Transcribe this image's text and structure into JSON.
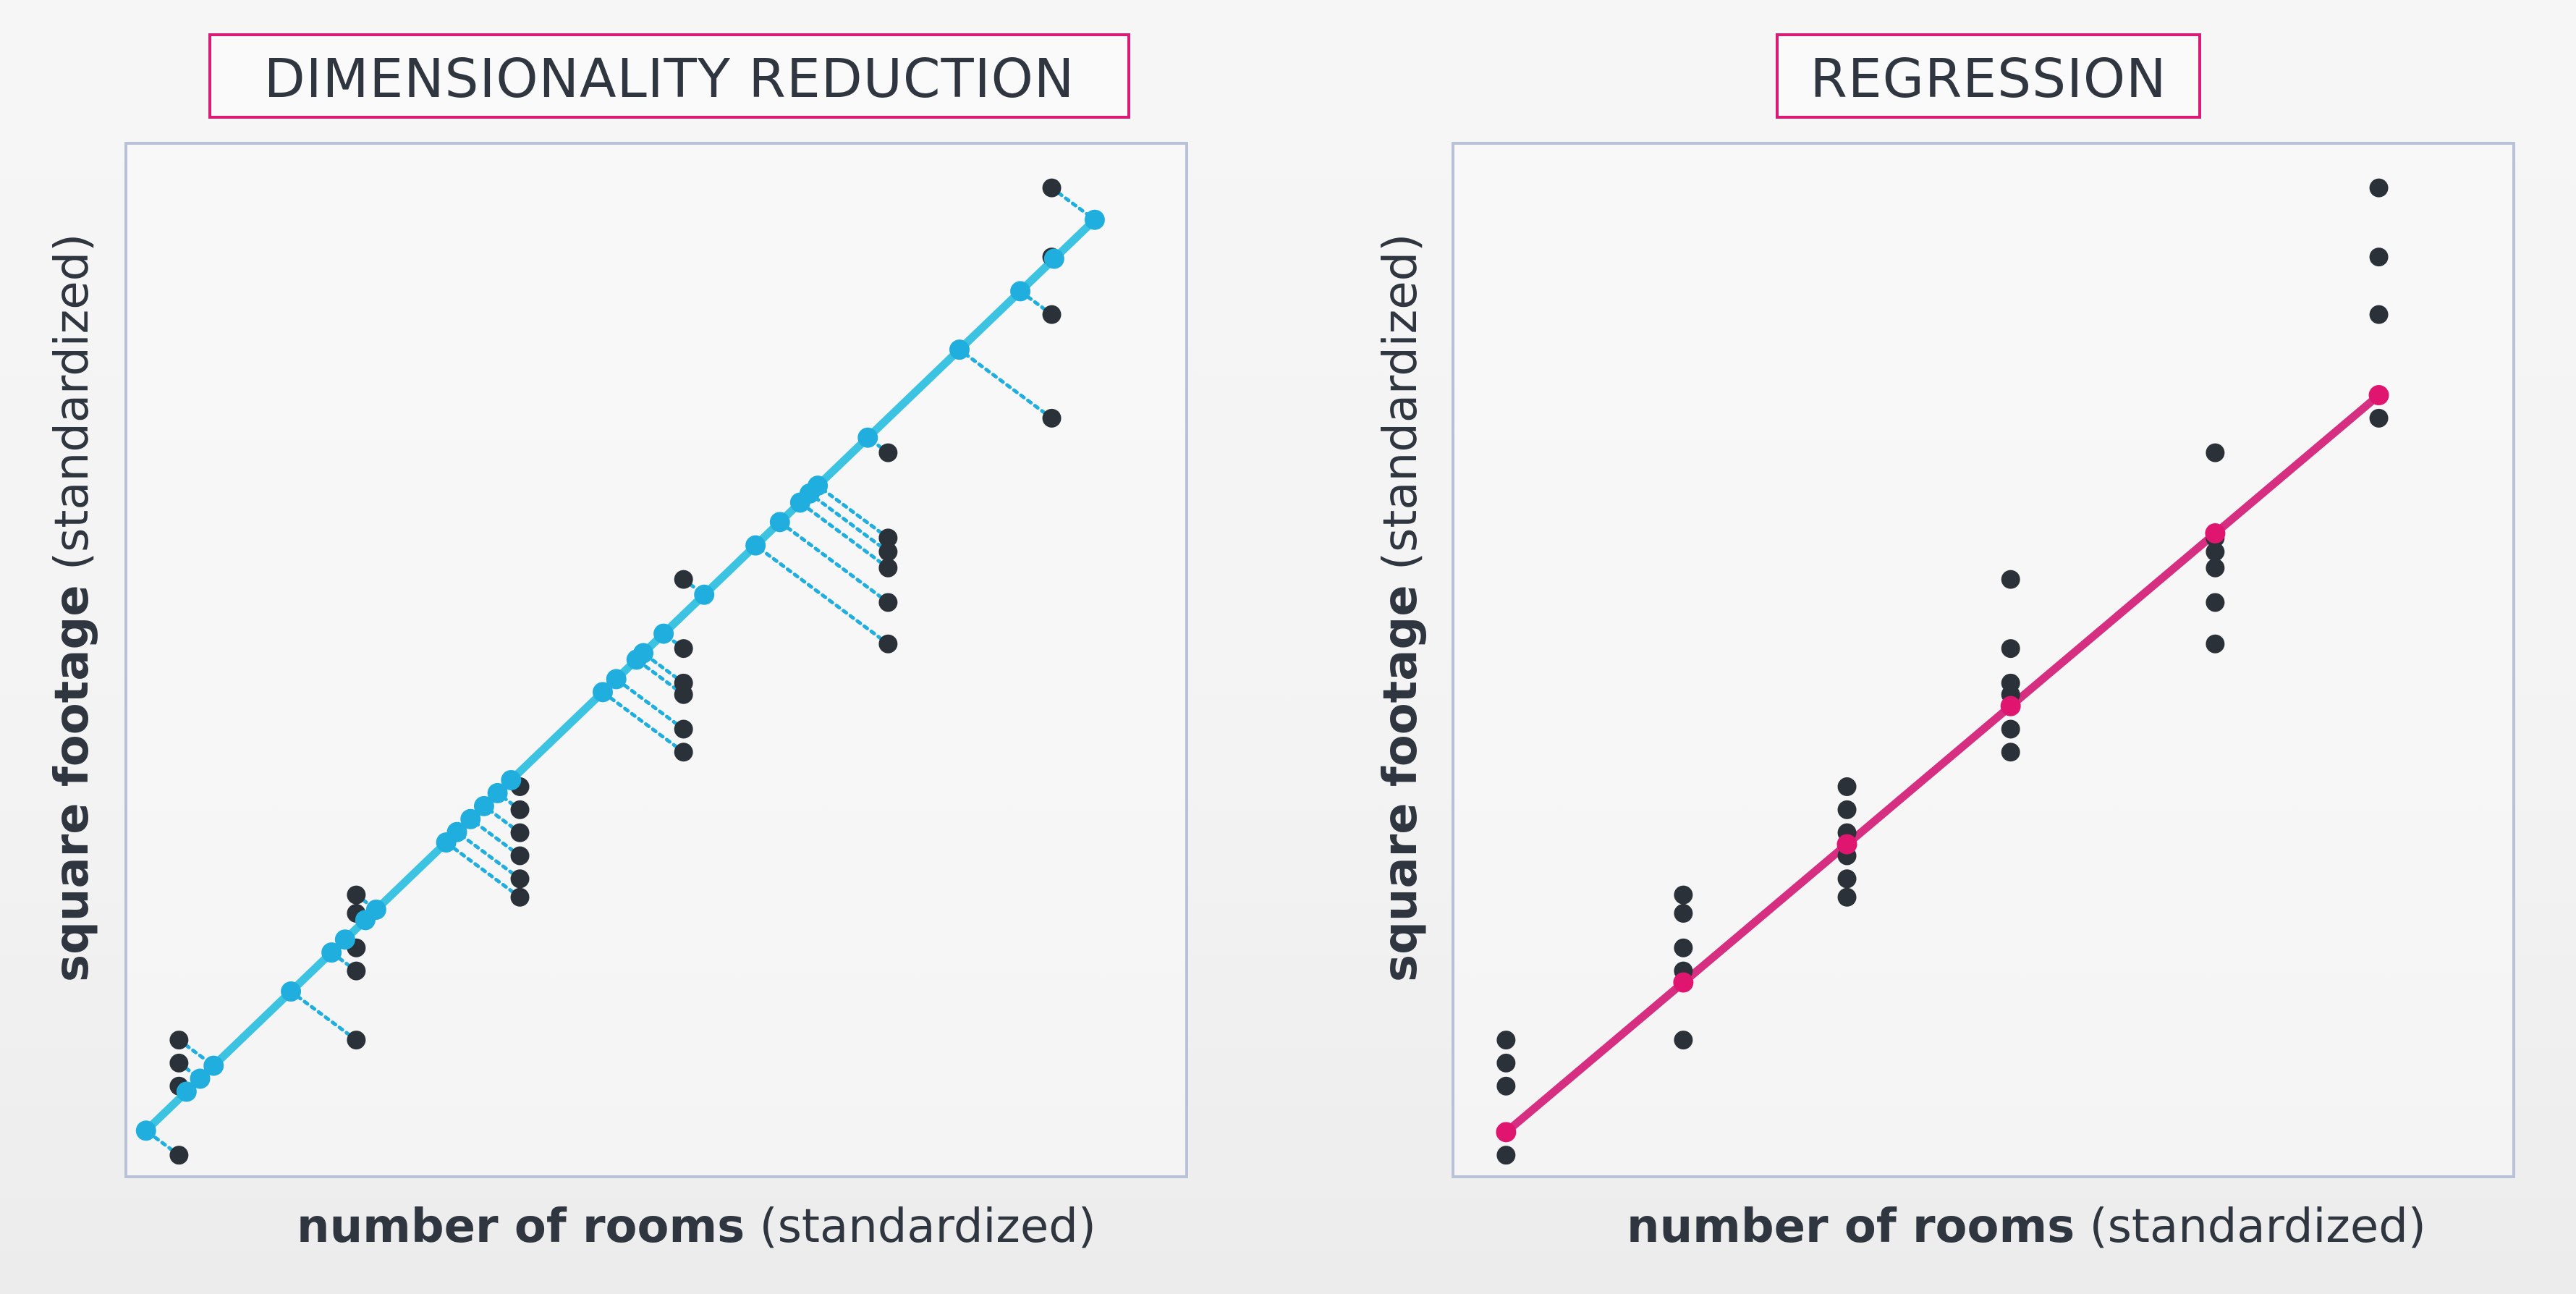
{
  "panels": [
    {
      "title": "DIMENSIONALITY REDUCTION",
      "xlabel_bold": "number of rooms",
      "xlabel_rest": " (standardized)",
      "ylabel_bold": "square footage",
      "ylabel_rest": " (standardized)"
    },
    {
      "title": "REGRESSION",
      "xlabel_bold": "number of rooms",
      "xlabel_rest": " (standardized)",
      "ylabel_bold": "square footage",
      "ylabel_rest": " (standardized)"
    }
  ],
  "colors": {
    "point": "#2b3138",
    "pca_line": "#3cc3e2",
    "pca_projection": "#20aede",
    "regression_line": "#d62f82",
    "regression_point": "#e0156f",
    "frame": "#b9c1d6",
    "title_border": "#d81b74",
    "text": "#2f3640"
  },
  "chart_data": [
    {
      "type": "scatter",
      "title": "DIMENSIONALITY REDUCTION",
      "xlabel": "number of rooms (standardized)",
      "ylabel": "square footage (standardized)",
      "xlim": [
        -1.9,
        2.0
      ],
      "ylim": [
        -2.2,
        2.3
      ],
      "grid": false,
      "method": "projection onto first principal component",
      "line": {
        "slope": 1.137,
        "intercept": 0.077
      },
      "points": [
        {
          "x": -1.7,
          "y": -1.6
        },
        {
          "x": -1.7,
          "y": -1.7
        },
        {
          "x": -1.7,
          "y": -1.8
        },
        {
          "x": -1.7,
          "y": -2.1
        },
        {
          "x": -1.05,
          "y": -0.97
        },
        {
          "x": -1.05,
          "y": -1.05
        },
        {
          "x": -1.05,
          "y": -1.2
        },
        {
          "x": -1.05,
          "y": -1.3
        },
        {
          "x": -1.05,
          "y": -1.6
        },
        {
          "x": -0.45,
          "y": -0.5
        },
        {
          "x": -0.45,
          "y": -0.6
        },
        {
          "x": -0.45,
          "y": -0.7
        },
        {
          "x": -0.45,
          "y": -0.8
        },
        {
          "x": -0.45,
          "y": -0.9
        },
        {
          "x": -0.45,
          "y": -0.98
        },
        {
          "x": 0.15,
          "y": 0.4
        },
        {
          "x": 0.15,
          "y": 0.1
        },
        {
          "x": 0.15,
          "y": -0.05
        },
        {
          "x": 0.15,
          "y": -0.1
        },
        {
          "x": 0.15,
          "y": -0.25
        },
        {
          "x": 0.15,
          "y": -0.35
        },
        {
          "x": 0.9,
          "y": 0.95
        },
        {
          "x": 0.9,
          "y": 0.58
        },
        {
          "x": 0.9,
          "y": 0.52
        },
        {
          "x": 0.9,
          "y": 0.45
        },
        {
          "x": 0.9,
          "y": 0.3
        },
        {
          "x": 0.9,
          "y": 0.12
        },
        {
          "x": 1.5,
          "y": 2.1
        },
        {
          "x": 1.5,
          "y": 1.8
        },
        {
          "x": 1.5,
          "y": 1.55
        },
        {
          "x": 1.5,
          "y": 1.1
        }
      ]
    },
    {
      "type": "scatter",
      "title": "REGRESSION",
      "xlabel": "number of rooms (standardized)",
      "ylabel": "square footage (standardized)",
      "xlim": [
        -1.9,
        2.0
      ],
      "ylim": [
        -2.2,
        2.3
      ],
      "grid": false,
      "method": "least-squares regression of square footage on number of rooms",
      "line": {
        "slope": 1.0,
        "intercept": -0.3
      },
      "points": [
        {
          "x": -1.7,
          "y": -1.6
        },
        {
          "x": -1.7,
          "y": -1.7
        },
        {
          "x": -1.7,
          "y": -1.8
        },
        {
          "x": -1.7,
          "y": -2.1
        },
        {
          "x": -1.05,
          "y": -0.97
        },
        {
          "x": -1.05,
          "y": -1.05
        },
        {
          "x": -1.05,
          "y": -1.2
        },
        {
          "x": -1.05,
          "y": -1.3
        },
        {
          "x": -1.05,
          "y": -1.6
        },
        {
          "x": -0.45,
          "y": -0.5
        },
        {
          "x": -0.45,
          "y": -0.6
        },
        {
          "x": -0.45,
          "y": -0.7
        },
        {
          "x": -0.45,
          "y": -0.8
        },
        {
          "x": -0.45,
          "y": -0.9
        },
        {
          "x": -0.45,
          "y": -0.98
        },
        {
          "x": 0.15,
          "y": 0.4
        },
        {
          "x": 0.15,
          "y": 0.1
        },
        {
          "x": 0.15,
          "y": -0.05
        },
        {
          "x": 0.15,
          "y": -0.1
        },
        {
          "x": 0.15,
          "y": -0.25
        },
        {
          "x": 0.15,
          "y": -0.35
        },
        {
          "x": 0.9,
          "y": 0.95
        },
        {
          "x": 0.9,
          "y": 0.58
        },
        {
          "x": 0.9,
          "y": 0.52
        },
        {
          "x": 0.9,
          "y": 0.45
        },
        {
          "x": 0.9,
          "y": 0.3
        },
        {
          "x": 0.9,
          "y": 0.12
        },
        {
          "x": 1.5,
          "y": 2.1
        },
        {
          "x": 1.5,
          "y": 1.8
        },
        {
          "x": 1.5,
          "y": 1.55
        },
        {
          "x": 1.5,
          "y": 1.1
        }
      ]
    }
  ]
}
